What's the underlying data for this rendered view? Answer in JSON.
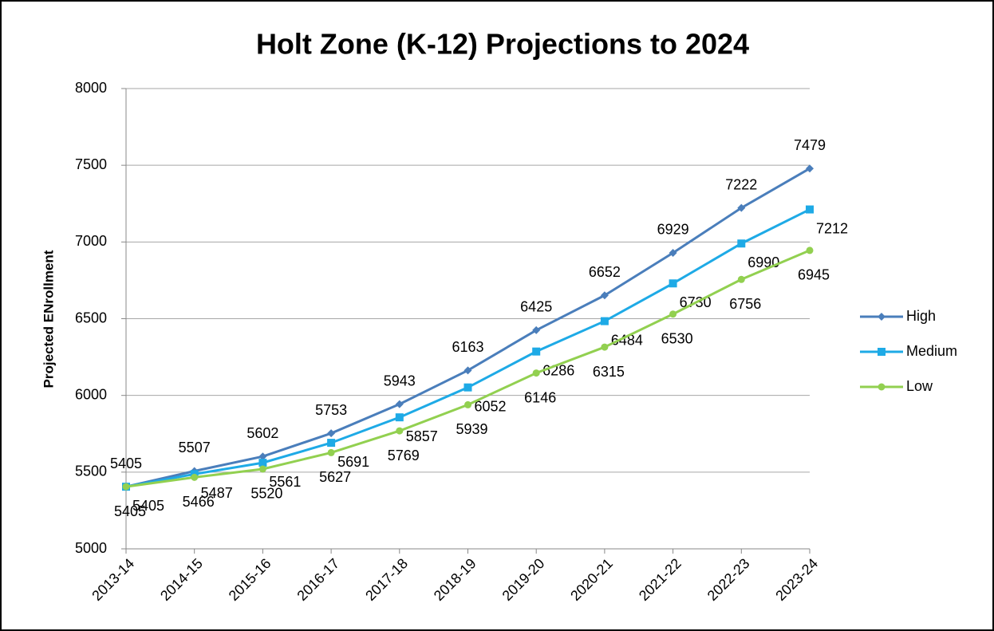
{
  "chart_data": {
    "type": "line",
    "title": "Holt Zone (K-12) Projections to 2024",
    "ylabel": "Projected ENrollment",
    "categories": [
      "2013-14",
      "2014-15",
      "2015-16",
      "2016-17",
      "2017-18",
      "2018-19",
      "2019-20",
      "2020-21",
      "2021-22",
      "2022-23",
      "2023-24"
    ],
    "series": [
      {
        "name": "High",
        "color": "#4a7ebb",
        "marker": "diamond",
        "values": [
          5405,
          5507,
          5602,
          5753,
          5943,
          6163,
          6425,
          6652,
          6929,
          7222,
          7479
        ]
      },
      {
        "name": "Medium",
        "color": "#1eaae6",
        "marker": "square",
        "values": [
          5405,
          5487,
          5561,
          5691,
          5857,
          6052,
          6286,
          6484,
          6730,
          6990,
          7212
        ]
      },
      {
        "name": "Low",
        "color": "#92d050",
        "marker": "circle",
        "values": [
          5405,
          5466,
          5520,
          5627,
          5769,
          5939,
          6146,
          6315,
          6530,
          6756,
          6945
        ]
      }
    ],
    "ylim": [
      5000,
      8000
    ],
    "yticks": [
      5000,
      5500,
      6000,
      6500,
      7000,
      7500,
      8000
    ],
    "grid": true,
    "legend": "right"
  }
}
